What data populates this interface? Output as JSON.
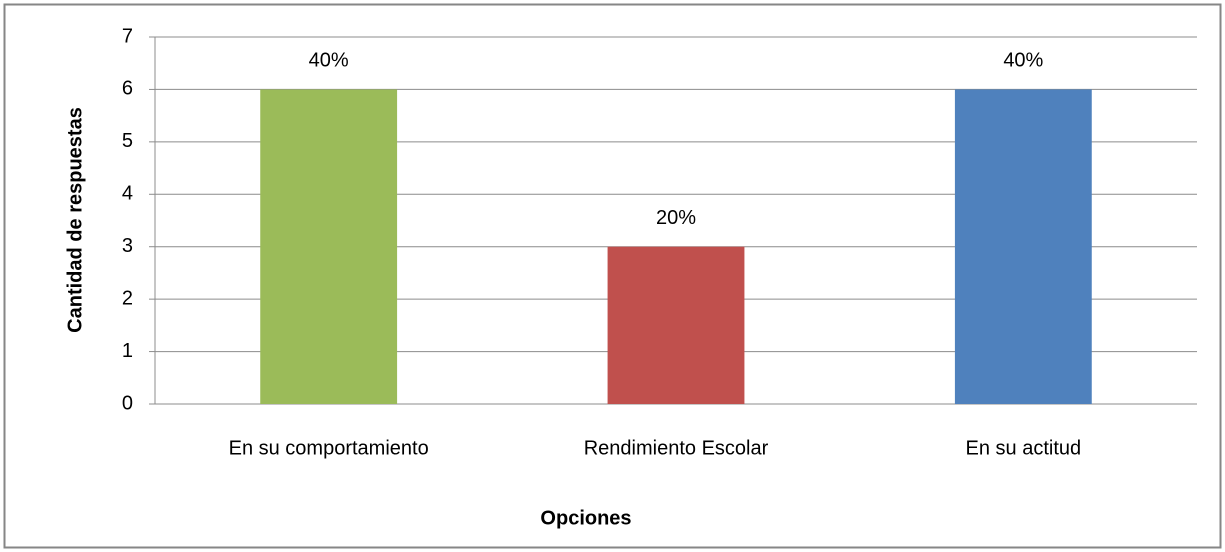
{
  "chart_data": {
    "type": "bar",
    "categories": [
      "En su comportamiento",
      "Rendimiento Escolar",
      "En su actitud"
    ],
    "values": [
      6,
      3,
      6
    ],
    "value_labels": [
      "40%",
      "20%",
      "40%"
    ],
    "colors": [
      "#9bbb59",
      "#c0504d",
      "#4f81bd"
    ],
    "x_label": "Opciones",
    "y_label": "Cantidad de respuestas",
    "ylim": [
      0,
      7
    ],
    "yticks": [
      0,
      1,
      2,
      3,
      4,
      5,
      6,
      7
    ],
    "grid": true
  }
}
